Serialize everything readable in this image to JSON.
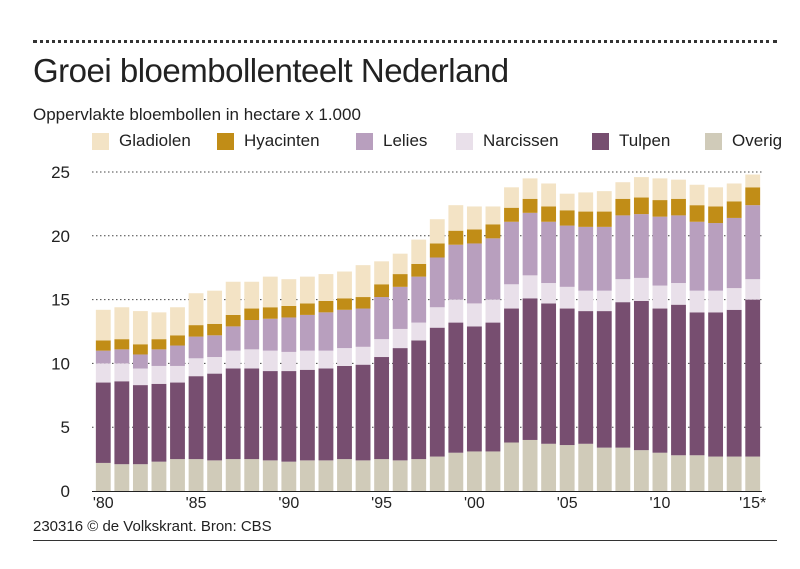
{
  "title": "Groei bloembollenteelt Nederland",
  "subtitle": "Oppervlakte bloembollen in hectare x 1.000",
  "source": "230316 © de Volkskrant. Bron: CBS",
  "legend": [
    {
      "name": "Gladiolen",
      "color": "#f3e3c5"
    },
    {
      "name": "Hyacinten",
      "color": "#c18d17"
    },
    {
      "name": "Lelies",
      "color": "#b89fbe"
    },
    {
      "name": "Narcissen",
      "color": "#e9e0ea"
    },
    {
      "name": "Tulpen",
      "color": "#774e70"
    },
    {
      "name": "Overig",
      "color": "#d0cbb9"
    }
  ],
  "chart_data": {
    "type": "bar",
    "stacked": true,
    "title": "Groei bloembollenteelt Nederland",
    "ylabel": "Oppervlakte bloembollen in hectare x 1.000",
    "xlabel": "",
    "ylim": [
      0,
      25
    ],
    "yticks": [
      0,
      5,
      10,
      15,
      20,
      25
    ],
    "grid": "dotted horizontal",
    "x_tick_labels": [
      {
        "index": 0,
        "label": "'80"
      },
      {
        "index": 5,
        "label": "'85"
      },
      {
        "index": 10,
        "label": "'90"
      },
      {
        "index": 15,
        "label": "'95"
      },
      {
        "index": 20,
        "label": "'00"
      },
      {
        "index": 25,
        "label": "'05"
      },
      {
        "index": 30,
        "label": "'10"
      },
      {
        "index": 35,
        "label": "'15*"
      }
    ],
    "categories": [
      "1980",
      "1981",
      "1982",
      "1983",
      "1984",
      "1985",
      "1986",
      "1987",
      "1988",
      "1989",
      "1990",
      "1991",
      "1992",
      "1993",
      "1994",
      "1995",
      "1996",
      "1997",
      "1998",
      "1999",
      "2000",
      "2001",
      "2002",
      "2003",
      "2004",
      "2005",
      "2006",
      "2007",
      "2008",
      "2009",
      "2010",
      "2011",
      "2012",
      "2013",
      "2014",
      "2015*"
    ],
    "series": [
      {
        "name": "Overig",
        "color": "#d0cbb9",
        "values": [
          2.2,
          2.1,
          2.1,
          2.3,
          2.5,
          2.5,
          2.4,
          2.5,
          2.5,
          2.4,
          2.3,
          2.4,
          2.4,
          2.5,
          2.4,
          2.5,
          2.4,
          2.5,
          2.7,
          3.0,
          3.1,
          3.1,
          3.8,
          4.0,
          3.7,
          3.6,
          3.7,
          3.4,
          3.4,
          3.2,
          3.0,
          2.8,
          2.8,
          2.7,
          2.7,
          2.7
        ]
      },
      {
        "name": "Tulpen",
        "color": "#774e70",
        "values": [
          6.3,
          6.5,
          6.2,
          6.1,
          6.0,
          6.5,
          6.8,
          7.1,
          7.1,
          7.0,
          7.1,
          7.1,
          7.2,
          7.3,
          7.5,
          8.0,
          8.8,
          9.3,
          10.1,
          10.2,
          9.8,
          10.1,
          10.5,
          11.1,
          11.0,
          10.7,
          10.4,
          10.7,
          11.4,
          11.7,
          11.3,
          11.8,
          11.2,
          11.3,
          11.5,
          12.3
        ]
      },
      {
        "name": "Narcissen",
        "color": "#e9e0ea",
        "values": [
          1.5,
          1.4,
          1.3,
          1.4,
          1.3,
          1.4,
          1.3,
          1.4,
          1.5,
          1.6,
          1.5,
          1.5,
          1.4,
          1.4,
          1.4,
          1.4,
          1.5,
          1.4,
          1.6,
          1.8,
          1.8,
          1.8,
          1.9,
          1.8,
          1.6,
          1.7,
          1.6,
          1.6,
          1.8,
          1.8,
          1.8,
          1.7,
          1.7,
          1.7,
          1.7,
          1.6
        ]
      },
      {
        "name": "Lelies",
        "color": "#b89fbe",
        "values": [
          1.0,
          1.1,
          1.1,
          1.3,
          1.6,
          1.7,
          1.7,
          1.9,
          2.3,
          2.5,
          2.7,
          2.8,
          3.0,
          3.0,
          3.0,
          3.3,
          3.3,
          3.6,
          3.9,
          4.3,
          4.7,
          4.8,
          4.9,
          4.9,
          4.8,
          4.8,
          5.0,
          5.0,
          5.0,
          5.0,
          5.4,
          5.3,
          5.4,
          5.3,
          5.5,
          5.8
        ]
      },
      {
        "name": "Hyacinten",
        "color": "#c18d17",
        "values": [
          0.8,
          0.8,
          0.8,
          0.8,
          0.8,
          0.9,
          0.9,
          0.9,
          0.9,
          0.9,
          0.9,
          0.9,
          0.9,
          0.9,
          0.9,
          1.0,
          1.0,
          1.0,
          1.1,
          1.1,
          1.1,
          1.1,
          1.1,
          1.1,
          1.2,
          1.2,
          1.2,
          1.2,
          1.3,
          1.3,
          1.3,
          1.3,
          1.3,
          1.3,
          1.3,
          1.4
        ]
      },
      {
        "name": "Gladiolen",
        "color": "#f3e3c5",
        "values": [
          2.4,
          2.5,
          2.6,
          2.1,
          2.2,
          2.5,
          2.6,
          2.6,
          2.1,
          2.4,
          2.1,
          2.1,
          2.1,
          2.1,
          2.5,
          1.8,
          1.6,
          1.9,
          1.9,
          2.0,
          1.8,
          1.4,
          1.6,
          1.6,
          1.8,
          1.3,
          1.5,
          1.6,
          1.3,
          1.6,
          1.7,
          1.5,
          1.6,
          1.5,
          1.4,
          1.0
        ]
      }
    ]
  }
}
